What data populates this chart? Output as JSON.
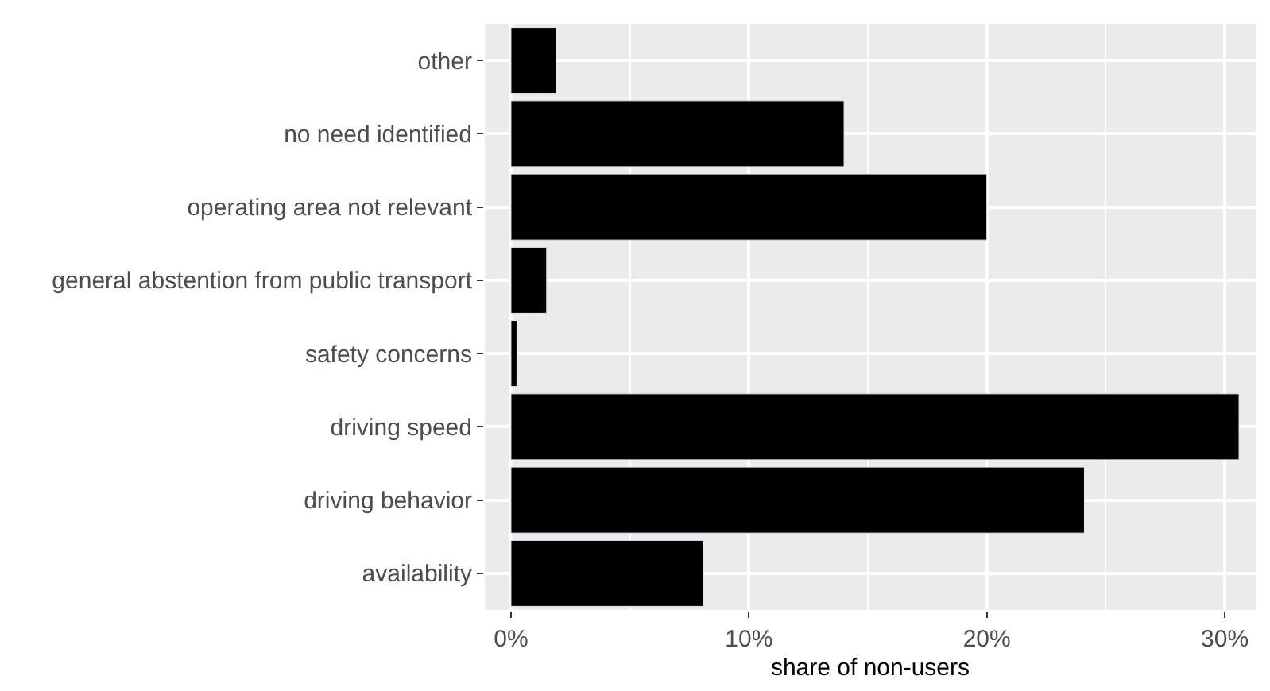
{
  "chart_data": {
    "type": "bar",
    "orientation": "horizontal",
    "xlabel": "share of non-users",
    "categories": [
      "other",
      "no need identified",
      "operating area not relevant",
      "general abstention from public transport",
      "safety concerns",
      "driving speed",
      "driving behavior",
      "availability"
    ],
    "values": [
      1.9,
      14.0,
      20.0,
      1.5,
      0.25,
      30.6,
      24.1,
      8.1
    ],
    "color": "#000000",
    "xlim": [
      -1.1,
      31.3
    ],
    "xticks": [
      {
        "value": 0,
        "label": "0%"
      },
      {
        "value": 10,
        "label": "10%"
      },
      {
        "value": 20,
        "label": "20%"
      },
      {
        "value": 30,
        "label": "30%"
      }
    ],
    "grid": true,
    "legend": false
  }
}
